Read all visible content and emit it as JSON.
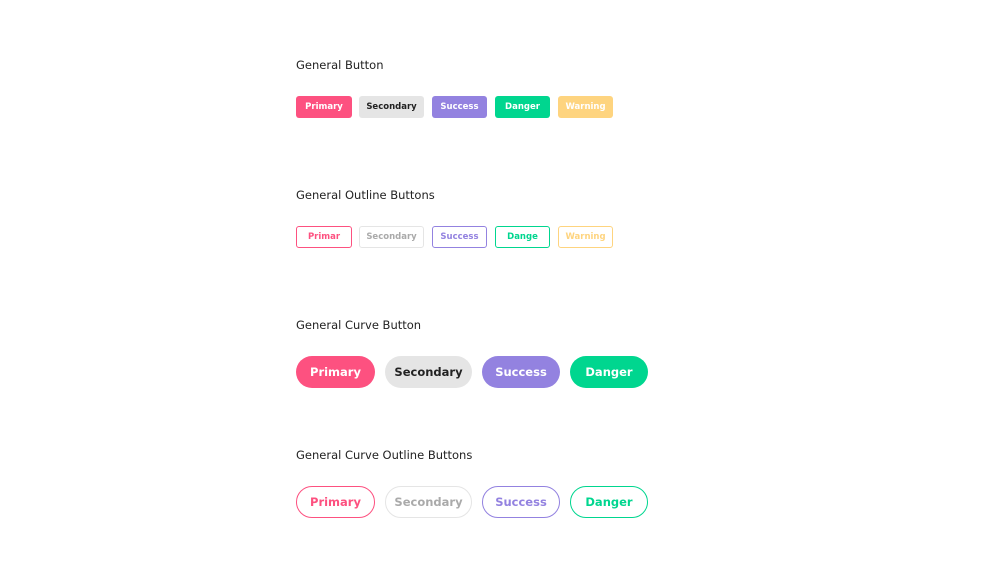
{
  "sections": [
    {
      "title": "General Button",
      "buttons": [
        "Primary",
        "Secondary",
        "Success",
        "Danger",
        "Warning"
      ]
    },
    {
      "title": "General Outline Buttons",
      "buttons": [
        "Primar",
        "Secondary",
        "Success",
        "Dange",
        "Warning"
      ]
    },
    {
      "title": "General Curve Button",
      "buttons": [
        "Primary",
        "Secondary",
        "Success",
        "Danger"
      ]
    },
    {
      "title": "General Curve Outline Buttons",
      "buttons": [
        "Primary",
        "Secondary",
        "Success",
        "Danger"
      ]
    }
  ],
  "colors": {
    "primary": "#fd5180",
    "secondary": "#e5e5e5",
    "success": "#9382e0",
    "danger": "#00d68f",
    "warning": "#fed47f"
  }
}
